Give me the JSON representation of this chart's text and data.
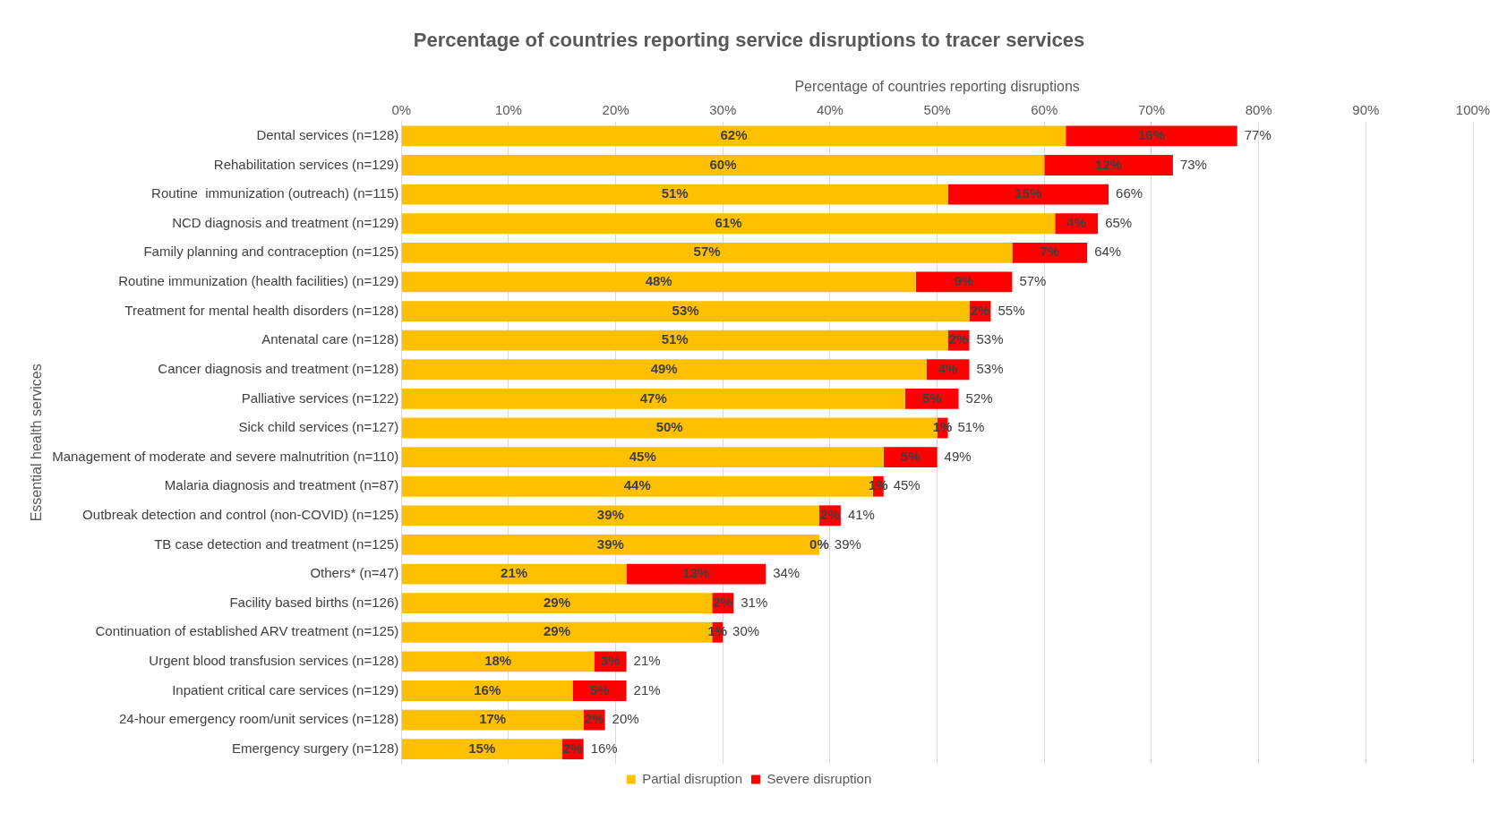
{
  "chart_data": {
    "type": "bar",
    "orientation": "horizontal",
    "stacked": true,
    "title": "Percentage of countries reporting service disruptions to tracer services",
    "xlabel": "Percentage of countries reporting disruptions",
    "ylabel": "Essential health services",
    "categories": [
      "Dental services (n=128)",
      "Rehabilitation services (n=129)",
      "Routine  immunization (outreach) (n=115)",
      "NCD diagnosis and treatment (n=129)",
      "Family planning and contraception (n=125)",
      "Routine immunization (health facilities) (n=129)",
      "Treatment for mental health disorders (n=128)",
      "Antenatal care (n=128)",
      "Cancer diagnosis and treatment (n=128)",
      "Palliative services (n=122)",
      "Sick child services (n=127)",
      "Management of moderate and severe malnutrition (n=110)",
      "Malaria diagnosis and treatment (n=87)",
      "Outbreak detection and control (non-COVID) (n=125)",
      "TB case detection and treatment (n=125)",
      "Others* (n=47)",
      "Facility based births (n=126)",
      "Continuation of established ARV treatment (n=125)",
      "Urgent blood transfusion services (n=128)",
      "Inpatient critical care services (n=129)",
      "24-hour emergency room/unit services (n=128)",
      "Emergency surgery (n=128)"
    ],
    "series": [
      {
        "name": "Partial disruption",
        "color": "#ffc000",
        "values": [
          62,
          60,
          51,
          61,
          57,
          48,
          53,
          51,
          49,
          47,
          50,
          45,
          44,
          39,
          39,
          21,
          29,
          29,
          18,
          16,
          17,
          15
        ],
        "value_labels": [
          "62%",
          "60%",
          "51%",
          "61%",
          "57%",
          "48%",
          "53%",
          "51%",
          "49%",
          "47%",
          "50%",
          "45%",
          "44%",
          "39%",
          "39%",
          "21%",
          "29%",
          "29%",
          "18%",
          "16%",
          "17%",
          "15%"
        ]
      },
      {
        "name": "Severe disruption",
        "color": "#ff0000",
        "values": [
          16,
          12,
          15,
          4,
          7,
          9,
          2,
          2,
          4,
          5,
          1,
          5,
          1,
          2,
          0,
          13,
          2,
          1,
          3,
          5,
          2,
          2
        ],
        "value_labels": [
          "16%",
          "12%",
          "15%",
          "4%",
          "7%",
          "9%",
          "2%",
          "2%",
          "4%",
          "5%",
          "1%",
          "5%",
          "1%",
          "2%",
          "0%",
          "13%",
          "2%",
          "1%",
          "3%",
          "5%",
          "2%",
          "2%"
        ]
      }
    ],
    "totals": [
      "77%",
      "73%",
      "66%",
      "65%",
      "64%",
      "57%",
      "55%",
      "53%",
      "53%",
      "52%",
      "51%",
      "49%",
      "45%",
      "41%",
      "39%",
      "34%",
      "31%",
      "30%",
      "21%",
      "21%",
      "20%",
      "16%"
    ],
    "xlim": [
      0,
      100
    ],
    "xticks": [
      {
        "value": 0,
        "label": "0%"
      },
      {
        "value": 10,
        "label": "10%"
      },
      {
        "value": 20,
        "label": "20%"
      },
      {
        "value": 30,
        "label": "30%"
      },
      {
        "value": 40,
        "label": "40%"
      },
      {
        "value": 50,
        "label": "50%"
      },
      {
        "value": 60,
        "label": "60%"
      },
      {
        "value": 70,
        "label": "70%"
      },
      {
        "value": 80,
        "label": "80%"
      },
      {
        "value": 90,
        "label": "90%"
      },
      {
        "value": 100,
        "label": "100%"
      }
    ],
    "grid": "x",
    "legend": "bottom"
  }
}
